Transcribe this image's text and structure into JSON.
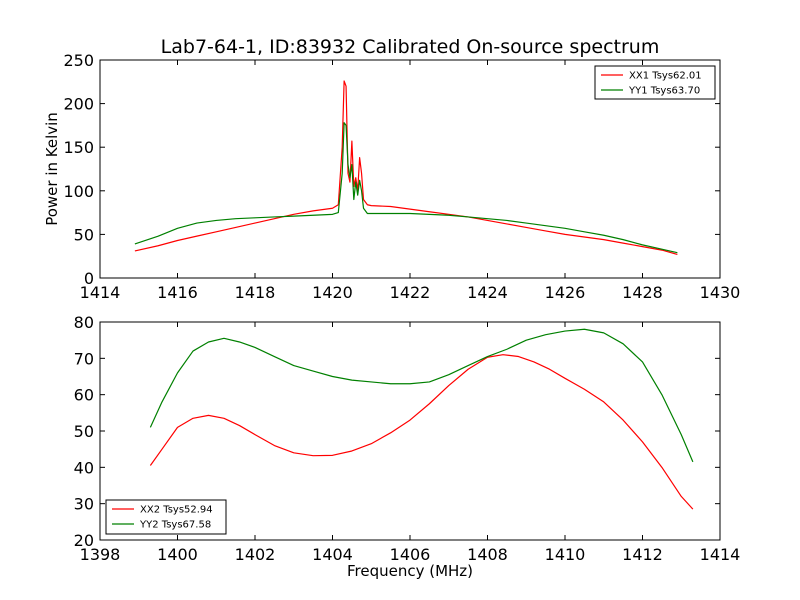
{
  "chart_data": [
    {
      "type": "line",
      "title": "Lab7-64-1, ID:83932 Calibrated On-source spectrum",
      "xlabel": "",
      "ylabel": "Power in Kelvin",
      "xlim": [
        1414,
        1430
      ],
      "ylim": [
        0,
        250
      ],
      "xticks": [
        "1414",
        "1416",
        "1418",
        "1420",
        "1422",
        "1424",
        "1426",
        "1428",
        "1430"
      ],
      "yticks": [
        "0",
        "50",
        "100",
        "150",
        "200",
        "250"
      ],
      "legend_position": "top-right",
      "grid": false,
      "series": [
        {
          "name": "XX1 Tsys62.01",
          "color": "#ff0000",
          "x": [
            1414.9,
            1415.5,
            1416,
            1416.5,
            1417,
            1417.5,
            1418,
            1418.5,
            1419,
            1419.5,
            1420,
            1420.15,
            1420.25,
            1420.3,
            1420.35,
            1420.4,
            1420.45,
            1420.5,
            1420.55,
            1420.6,
            1420.65,
            1420.7,
            1420.75,
            1420.8,
            1420.9,
            1421,
            1421.5,
            1422,
            1422.5,
            1423,
            1423.5,
            1424,
            1424.5,
            1425,
            1425.5,
            1426,
            1426.5,
            1427,
            1427.5,
            1428,
            1428.5,
            1428.9
          ],
          "y": [
            31,
            37,
            43,
            48,
            53,
            58,
            63,
            68,
            73,
            77,
            80,
            84,
            150,
            226,
            220,
            120,
            110,
            157,
            105,
            115,
            100,
            138,
            120,
            90,
            84,
            83,
            82,
            79,
            76,
            73,
            70,
            66,
            62,
            58,
            54,
            50,
            47,
            44,
            40,
            36,
            32,
            27
          ]
        },
        {
          "name": "YY1 Tsys63.70",
          "color": "#008000",
          "x": [
            1414.9,
            1415.5,
            1416,
            1416.5,
            1417,
            1417.5,
            1418,
            1418.5,
            1419,
            1419.5,
            1420,
            1420.15,
            1420.25,
            1420.3,
            1420.35,
            1420.4,
            1420.45,
            1420.5,
            1420.55,
            1420.6,
            1420.65,
            1420.7,
            1420.75,
            1420.8,
            1420.9,
            1421,
            1421.5,
            1422,
            1422.5,
            1423,
            1423.5,
            1424,
            1424.5,
            1425,
            1425.5,
            1426,
            1426.5,
            1427,
            1427.5,
            1428,
            1428.5,
            1428.9
          ],
          "y": [
            39,
            48,
            57,
            63,
            66,
            68,
            69,
            70,
            71,
            72,
            73,
            75,
            120,
            178,
            175,
            130,
            115,
            130,
            90,
            110,
            95,
            112,
            100,
            80,
            74,
            74,
            74,
            74,
            73,
            72,
            70,
            68,
            66,
            63,
            60,
            57,
            53,
            49,
            44,
            38,
            33,
            29
          ]
        }
      ]
    },
    {
      "type": "line",
      "title": "",
      "xlabel": "Frequency (MHz)",
      "ylabel": "",
      "xlim": [
        1398,
        1414
      ],
      "ylim": [
        20,
        80
      ],
      "xticks": [
        "1398",
        "1400",
        "1402",
        "1404",
        "1406",
        "1408",
        "1410",
        "1412",
        "1414"
      ],
      "yticks": [
        "20",
        "30",
        "40",
        "50",
        "60",
        "70",
        "80"
      ],
      "legend_position": "bottom-left",
      "grid": false,
      "series": [
        {
          "name": "XX2 Tsys52.94",
          "color": "#ff0000",
          "x": [
            1399.3,
            1399.6,
            1400,
            1400.4,
            1400.8,
            1401.2,
            1401.6,
            1402,
            1402.5,
            1403,
            1403.5,
            1404,
            1404.5,
            1405,
            1405.5,
            1406,
            1406.5,
            1407,
            1407.5,
            1408,
            1408.4,
            1408.8,
            1409.2,
            1409.6,
            1410,
            1410.5,
            1411,
            1411.5,
            1412,
            1412.5,
            1413,
            1413.3
          ],
          "y": [
            40.5,
            45,
            51,
            53.5,
            54.3,
            53.5,
            51.5,
            49,
            46,
            44,
            43.2,
            43.3,
            44.5,
            46.5,
            49.5,
            53,
            57.5,
            62.5,
            67,
            70.3,
            71,
            70.5,
            69,
            67,
            64.5,
            61.5,
            58,
            53,
            47,
            40,
            32,
            28.5
          ]
        },
        {
          "name": "YY2 Tsys67.58",
          "color": "#008000",
          "x": [
            1399.3,
            1399.6,
            1400,
            1400.4,
            1400.8,
            1401.2,
            1401.6,
            1402,
            1402.5,
            1403,
            1403.5,
            1404,
            1404.5,
            1405,
            1405.5,
            1406,
            1406.5,
            1407,
            1407.5,
            1408,
            1408.5,
            1409,
            1409.5,
            1410,
            1410.5,
            1411,
            1411.5,
            1412,
            1412.5,
            1413,
            1413.3
          ],
          "y": [
            51,
            58,
            66,
            72,
            74.5,
            75.5,
            74.5,
            73,
            70.5,
            68,
            66.5,
            65,
            64,
            63.5,
            63,
            63,
            63.5,
            65.5,
            68,
            70.5,
            72.5,
            75,
            76.5,
            77.5,
            78,
            77,
            74,
            69,
            60,
            49,
            41.5
          ]
        }
      ]
    }
  ]
}
